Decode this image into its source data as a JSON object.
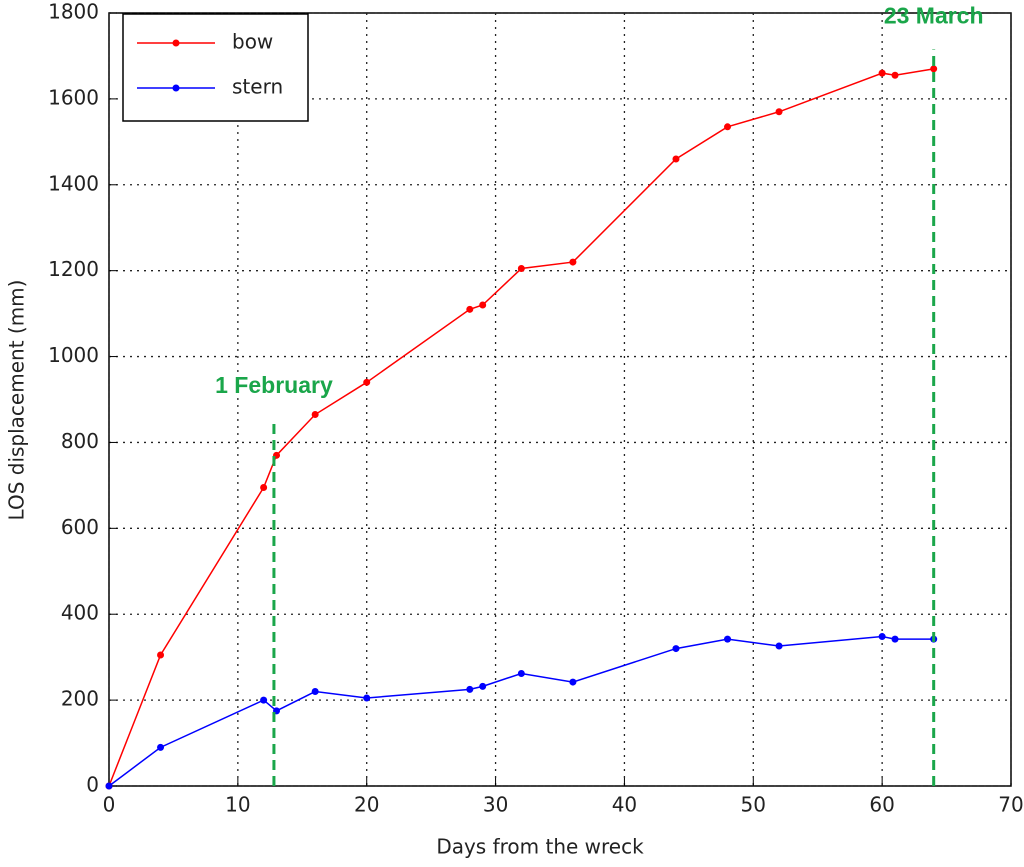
{
  "chart_data": {
    "type": "line",
    "xlabel": "Days from the wreck",
    "ylabel": "LOS displacement (mm)",
    "xlim": [
      0,
      70
    ],
    "xticks": [
      0,
      10,
      20,
      30,
      40,
      50,
      60,
      70
    ],
    "ylim": [
      0,
      1800
    ],
    "yticks": [
      0,
      200,
      400,
      600,
      800,
      1000,
      1200,
      1400,
      1600,
      1800
    ],
    "grid": true,
    "legend": "upper left",
    "series": [
      {
        "name": "bow",
        "color": "#ff0000",
        "x": [
          0,
          4,
          12,
          13,
          16,
          20,
          28,
          29,
          32,
          36,
          44,
          48,
          52,
          60,
          61,
          64
        ],
        "values": [
          0,
          305,
          695,
          770,
          865,
          940,
          1110,
          1120,
          1205,
          1220,
          1460,
          1535,
          1570,
          1660,
          1655,
          1670
        ]
      },
      {
        "name": "stern",
        "color": "#0000ff",
        "x": [
          0,
          4,
          12,
          13,
          16,
          20,
          28,
          29,
          32,
          36,
          44,
          48,
          52,
          60,
          61,
          64
        ],
        "values": [
          0,
          90,
          200,
          175,
          220,
          205,
          225,
          232,
          262,
          242,
          320,
          342,
          326,
          348,
          342,
          342
        ]
      }
    ],
    "annotations": [
      {
        "text": "1 February",
        "x": 12.8,
        "y": 855,
        "color": "#1aa64a"
      },
      {
        "text": "23 March",
        "x": 64,
        "y": 1715,
        "color": "#1aa64a"
      }
    ]
  }
}
